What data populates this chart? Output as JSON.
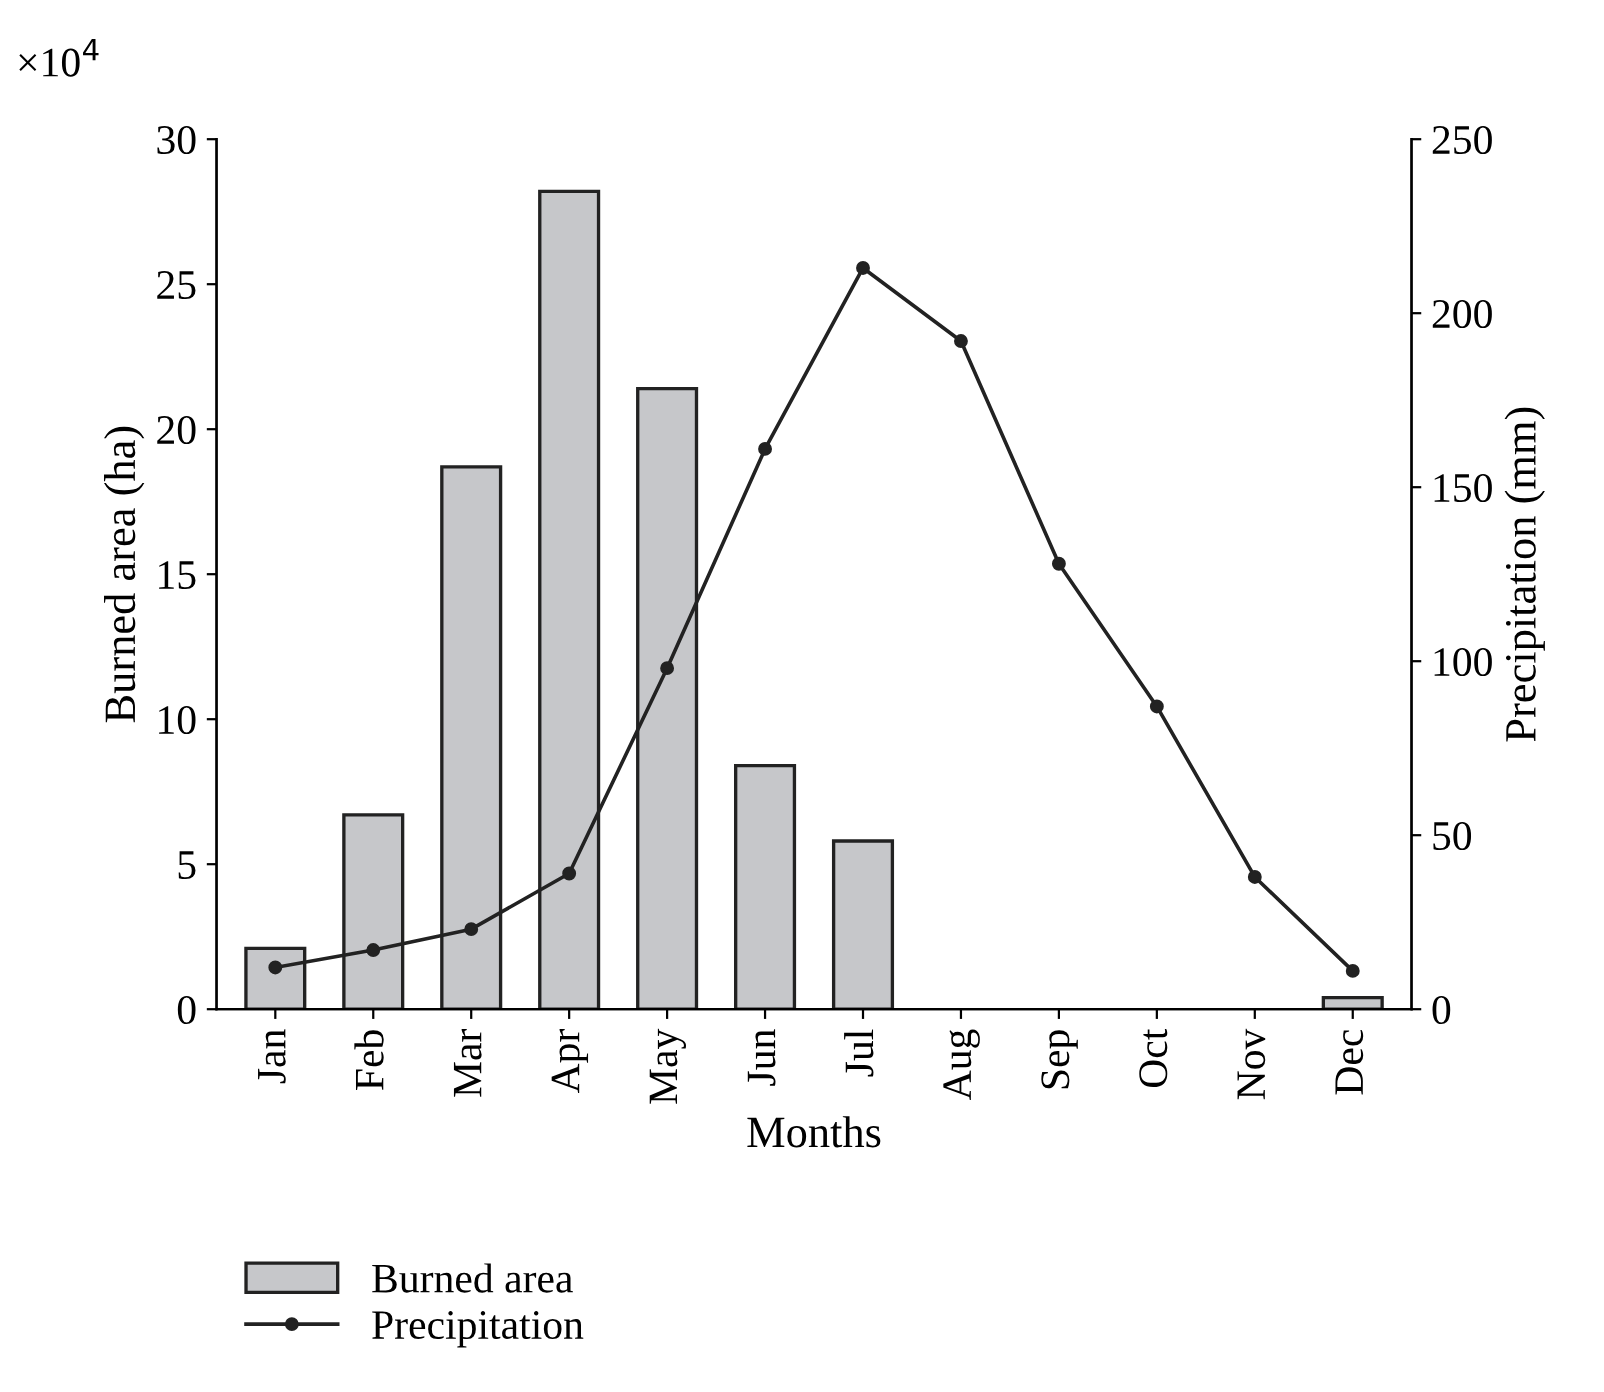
{
  "chart_data": {
    "type": "bar",
    "xlabel": "Months",
    "ylabel": "Burned area (ha)",
    "y2label": "Precipitation (mm)",
    "annotations": [
      "×10$^{4}$"
    ],
    "categories": [
      "Jan",
      "Feb",
      "Mar",
      "Apr",
      "May",
      "Jun",
      "Jul",
      "Aug",
      "Sep",
      "Oct",
      "Nov",
      "Dec"
    ],
    "series": [
      {
        "name": "Burned area",
        "color": "#c6c7ca",
        "values": [
          2.1,
          6.7,
          18.7,
          28.2,
          21.4,
          8.4,
          5.8,
          0,
          0,
          0,
          0,
          0.4
        ]
      },
      {
        "name": "Precipitation",
        "type": "line",
        "axis": "y2",
        "color": "#222222",
        "marker": "circle",
        "values": [
          12,
          17,
          23,
          39,
          98,
          161,
          213,
          192,
          128,
          87,
          38,
          11
        ]
      }
    ],
    "ylim": [
      0,
      30
    ],
    "yticks": [
      0,
      5,
      10,
      15,
      20,
      25,
      30
    ],
    "y2lim": [
      0,
      250
    ],
    "y2ticks": [
      0,
      50,
      100,
      150,
      200,
      250
    ],
    "grid": false,
    "legend": "bottom left"
  }
}
